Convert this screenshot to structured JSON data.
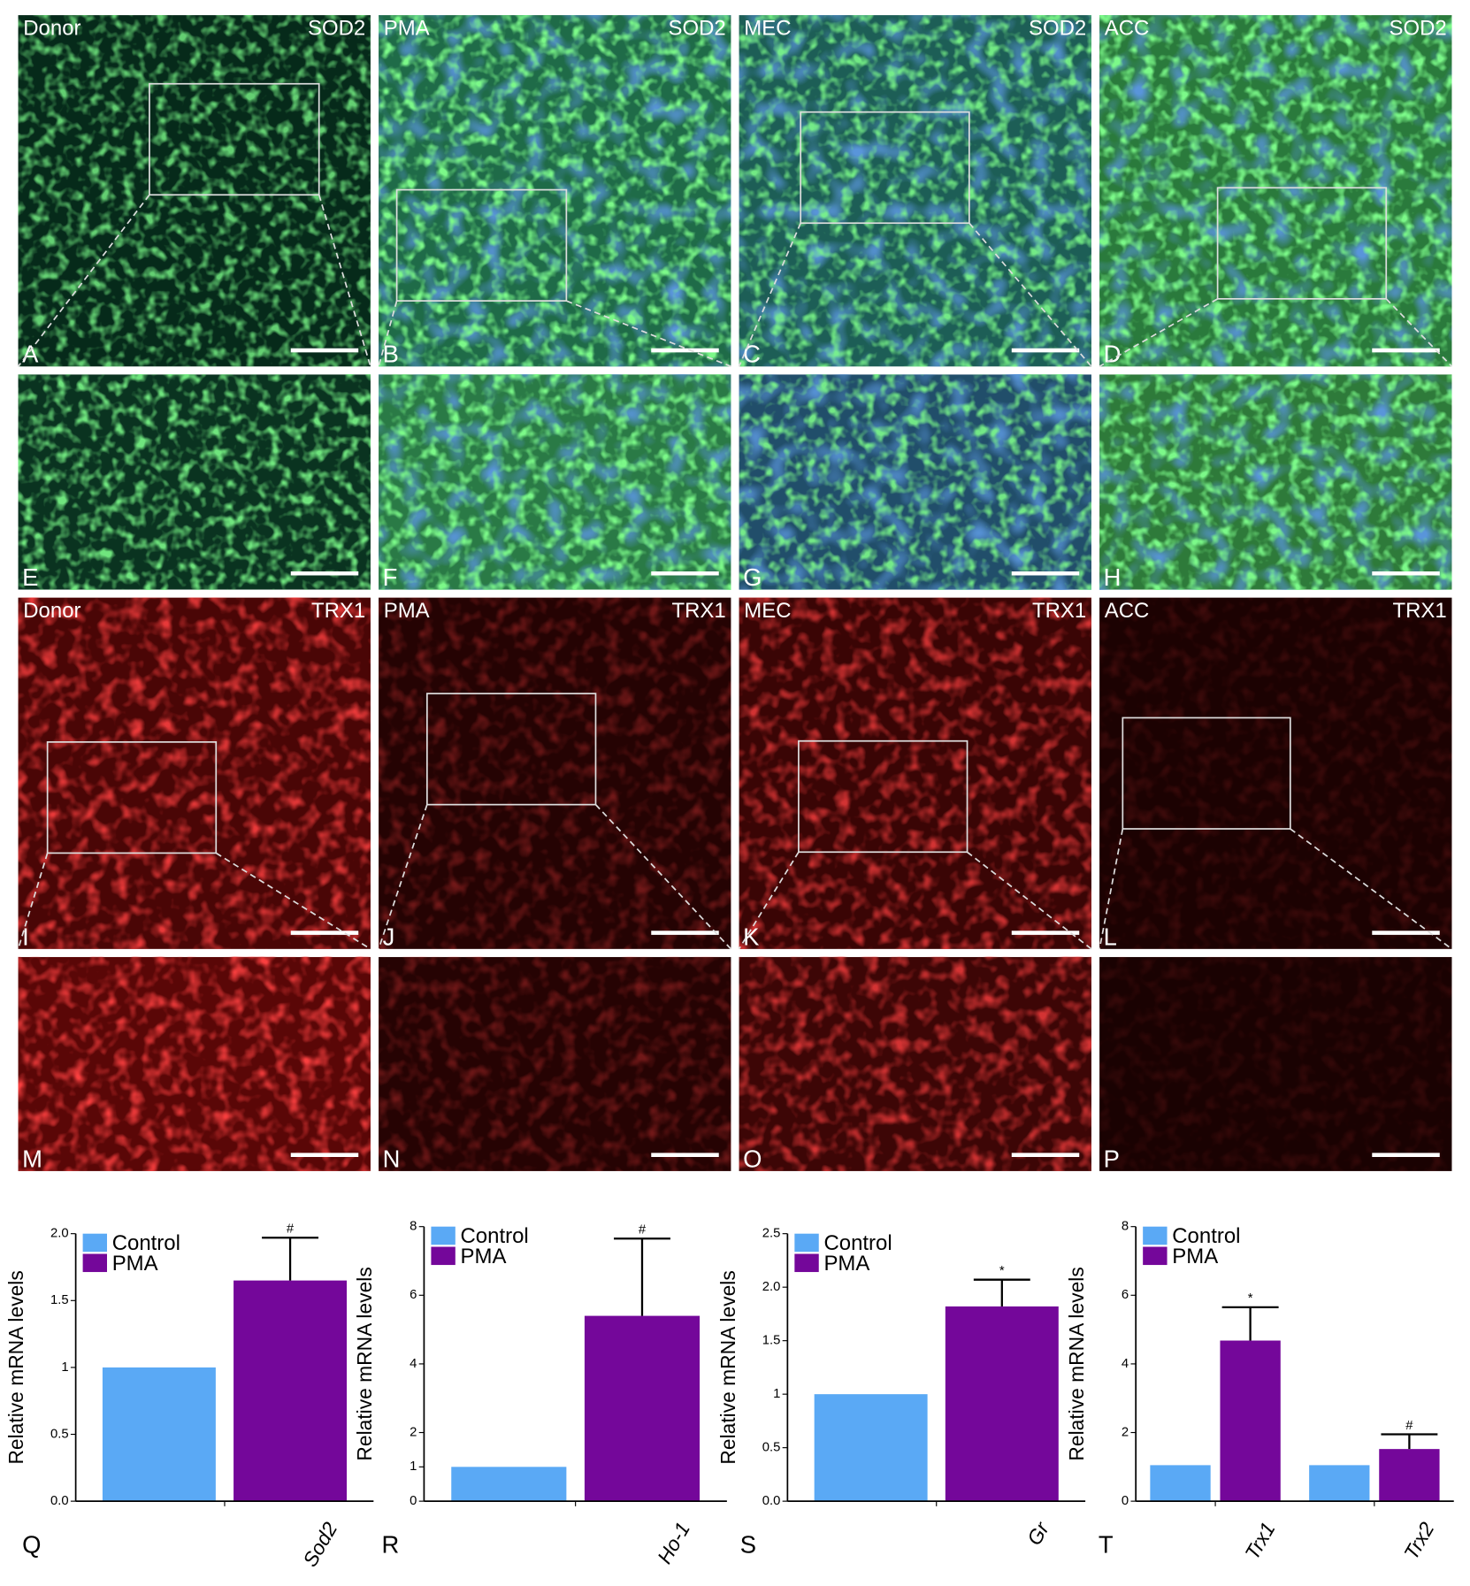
{
  "micrograph_rows": [
    {
      "marker": "SOD2",
      "panels": [
        {
          "letter": "A",
          "region": "Donor"
        },
        {
          "letter": "B",
          "region": "PMA"
        },
        {
          "letter": "C",
          "region": "MEC"
        },
        {
          "letter": "D",
          "region": "ACC"
        }
      ]
    },
    {
      "panels": [
        {
          "letter": "E"
        },
        {
          "letter": "F"
        },
        {
          "letter": "G"
        },
        {
          "letter": "H"
        }
      ]
    },
    {
      "marker": "TRX1",
      "panels": [
        {
          "letter": "I",
          "region": "Donor"
        },
        {
          "letter": "J",
          "region": "PMA"
        },
        {
          "letter": "K",
          "region": "MEC"
        },
        {
          "letter": "L",
          "region": "ACC"
        }
      ]
    },
    {
      "panels": [
        {
          "letter": "M"
        },
        {
          "letter": "N"
        },
        {
          "letter": "O"
        },
        {
          "letter": "P"
        }
      ]
    }
  ],
  "chart_data": [
    {
      "type": "bar",
      "label": "Q",
      "ylabel": "Relative mRNA levels",
      "categories": [
        "Sod2"
      ],
      "series": [
        {
          "name": "Control",
          "color": "#5aa9f5",
          "values": [
            1.0
          ]
        },
        {
          "name": "PMA",
          "color": "#74079a",
          "values": [
            1.65
          ],
          "errors": [
            0.32
          ],
          "annotations": [
            "#"
          ]
        }
      ],
      "ylim": [
        0,
        2.0
      ],
      "yticks": [
        {
          "value": 0,
          "label": "0.0"
        },
        0.5,
        1,
        1.5,
        {
          "value": 2,
          "label": "2.0"
        }
      ]
    },
    {
      "type": "bar",
      "label": "R",
      "ylabel": "Relative mRNA levels",
      "categories": [
        "Ho-1"
      ],
      "series": [
        {
          "name": "Control",
          "color": "#5aa9f5",
          "values": [
            1.0
          ]
        },
        {
          "name": "PMA",
          "color": "#74079a",
          "values": [
            5.4
          ],
          "errors": [
            2.25
          ],
          "annotations": [
            "#"
          ]
        }
      ],
      "ylim": [
        0,
        8
      ],
      "yticks": [
        0,
        1,
        2,
        4,
        6,
        8
      ]
    },
    {
      "type": "bar",
      "label": "S",
      "ylabel": "Relative mRNA levels",
      "categories": [
        "Gr"
      ],
      "series": [
        {
          "name": "Control",
          "color": "#5aa9f5",
          "values": [
            1.0
          ]
        },
        {
          "name": "PMA",
          "color": "#74079a",
          "values": [
            1.82
          ],
          "errors": [
            0.25
          ],
          "annotations": [
            "*"
          ]
        }
      ],
      "ylim": [
        0,
        2.5
      ],
      "yticks": [
        {
          "value": 0,
          "label": "0.0"
        },
        0.5,
        1,
        1.5,
        {
          "value": 2,
          "label": "2.0"
        },
        2.5
      ]
    },
    {
      "type": "bar",
      "label": "T",
      "ylabel": "Relative mRNA levels",
      "categories": [
        "Trx1",
        "Trx2"
      ],
      "series": [
        {
          "name": "Control",
          "color": "#5aa9f5",
          "values": [
            1.05,
            1.05
          ]
        },
        {
          "name": "PMA",
          "color": "#74079a",
          "values": [
            4.68,
            1.52
          ],
          "errors": [
            0.97,
            0.43
          ],
          "annotations": [
            "*",
            "#"
          ]
        }
      ],
      "ylim": [
        0,
        8
      ],
      "yticks": [
        0,
        2,
        4,
        6,
        8
      ]
    }
  ]
}
